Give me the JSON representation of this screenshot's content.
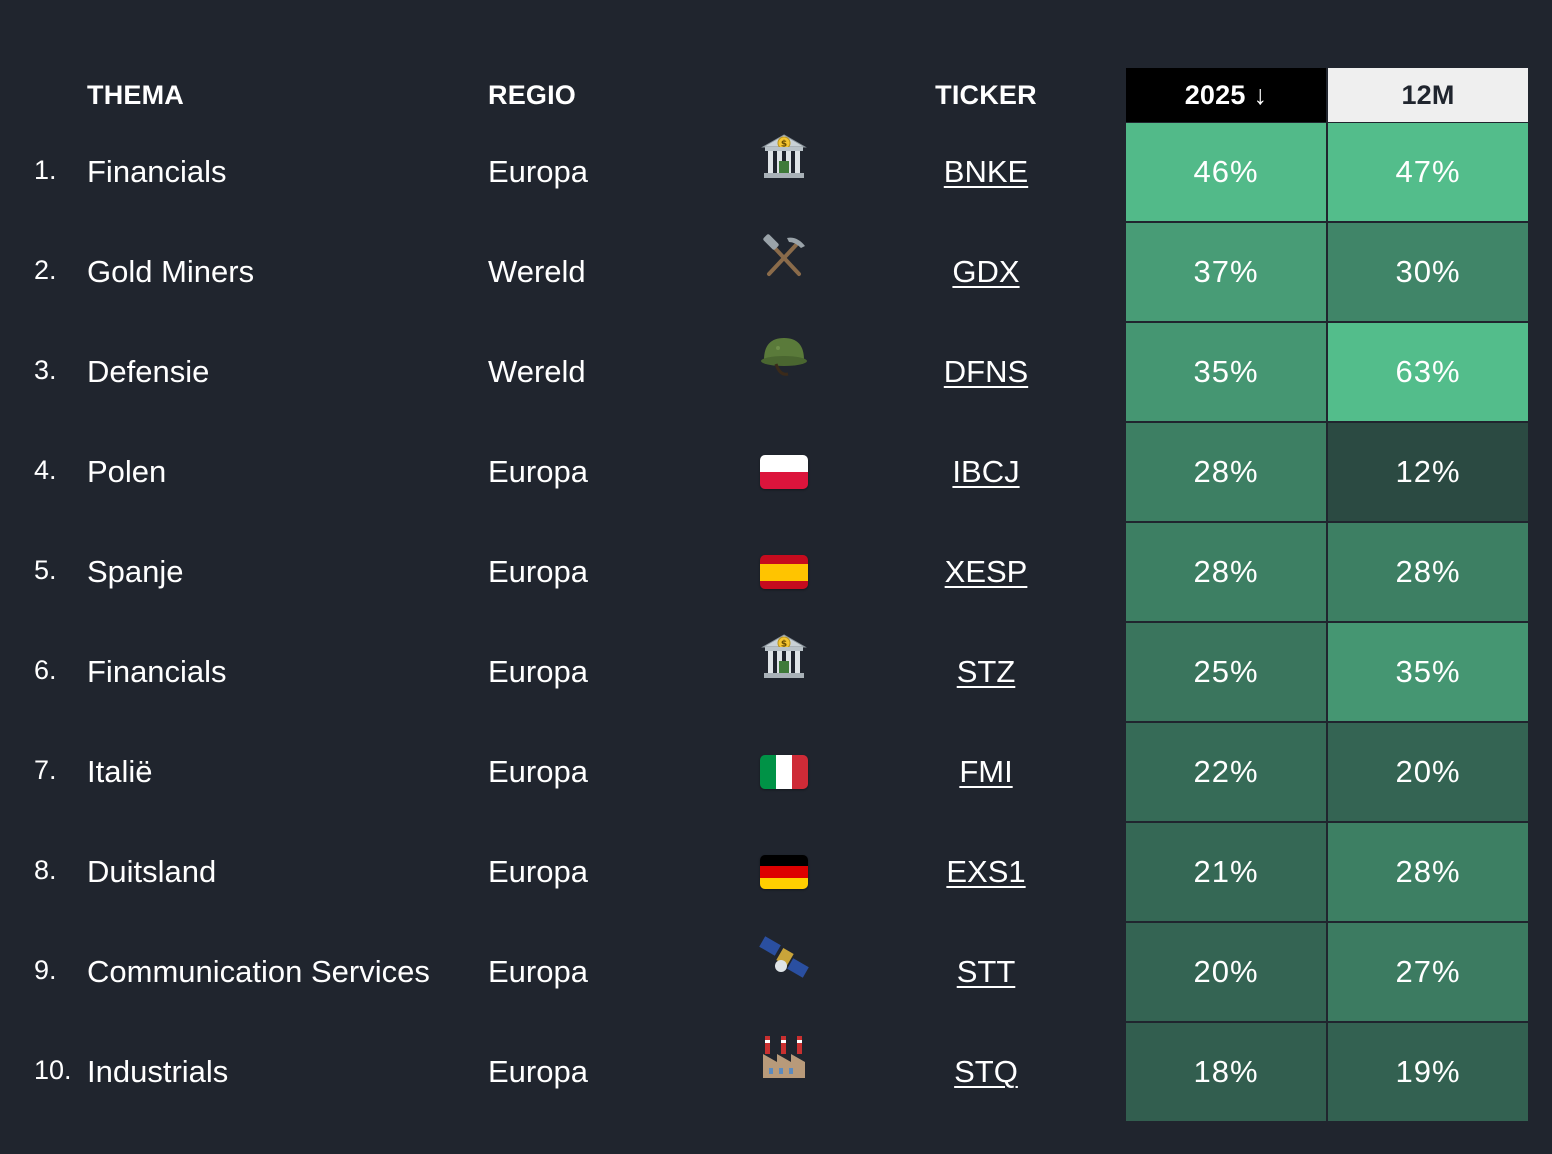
{
  "header": {
    "thema": "THEMA",
    "regio": "REGIO",
    "ticker": "TICKER",
    "col_2025": "2025",
    "col_2025_sort": "↓",
    "col_12m": "12M"
  },
  "colors": {
    "background": "#20252e",
    "header_2025_bg": "#000000",
    "header_12m_bg": "#efefef",
    "heat_low": "#2b4a42",
    "heat_high": "#53bd8b"
  },
  "rows": [
    {
      "rank": "1.",
      "thema": "Financials",
      "regio": "Europa",
      "icon": "bank-icon",
      "ticker": "BNKE",
      "y2025": "46%",
      "m12": "47%",
      "y2025_value": 46,
      "m12_value": 47
    },
    {
      "rank": "2.",
      "thema": "Gold Miners",
      "regio": "Wereld",
      "icon": "pick-hammer-icon",
      "ticker": "GDX",
      "y2025": "37%",
      "m12": "30%",
      "y2025_value": 37,
      "m12_value": 30
    },
    {
      "rank": "3.",
      "thema": "Defensie",
      "regio": "Wereld",
      "icon": "military-helmet-icon",
      "ticker": "DFNS",
      "y2025": "35%",
      "m12": "63%",
      "y2025_value": 35,
      "m12_value": 63
    },
    {
      "rank": "4.",
      "thema": "Polen",
      "regio": "Europa",
      "icon": "poland-flag-icon",
      "ticker": "IBCJ",
      "y2025": "28%",
      "m12": "12%",
      "y2025_value": 28,
      "m12_value": 12
    },
    {
      "rank": "5.",
      "thema": "Spanje",
      "regio": "Europa",
      "icon": "spain-flag-icon",
      "ticker": "XESP",
      "y2025": "28%",
      "m12": "28%",
      "y2025_value": 28,
      "m12_value": 28
    },
    {
      "rank": "6.",
      "thema": "Financials",
      "regio": "Europa",
      "icon": "bank-icon",
      "ticker": "STZ",
      "y2025": "25%",
      "m12": "35%",
      "y2025_value": 25,
      "m12_value": 35
    },
    {
      "rank": "7.",
      "thema": "Italië",
      "regio": "Europa",
      "icon": "italy-flag-icon",
      "ticker": "FMI",
      "y2025": "22%",
      "m12": "20%",
      "y2025_value": 22,
      "m12_value": 20
    },
    {
      "rank": "8.",
      "thema": "Duitsland",
      "regio": "Europa",
      "icon": "germany-flag-icon",
      "ticker": "EXS1",
      "y2025": "21%",
      "m12": "28%",
      "y2025_value": 21,
      "m12_value": 28
    },
    {
      "rank": "9.",
      "thema": "Communication Services",
      "regio": "Europa",
      "icon": "satellite-icon",
      "ticker": "STT",
      "y2025": "20%",
      "m12": "27%",
      "y2025_value": 20,
      "m12_value": 27
    },
    {
      "rank": "10.",
      "thema": "Industrials",
      "regio": "Europa",
      "icon": "factory-icon",
      "ticker": "STQ",
      "y2025": "18%",
      "m12": "19%",
      "y2025_value": 18,
      "m12_value": 19
    }
  ]
}
